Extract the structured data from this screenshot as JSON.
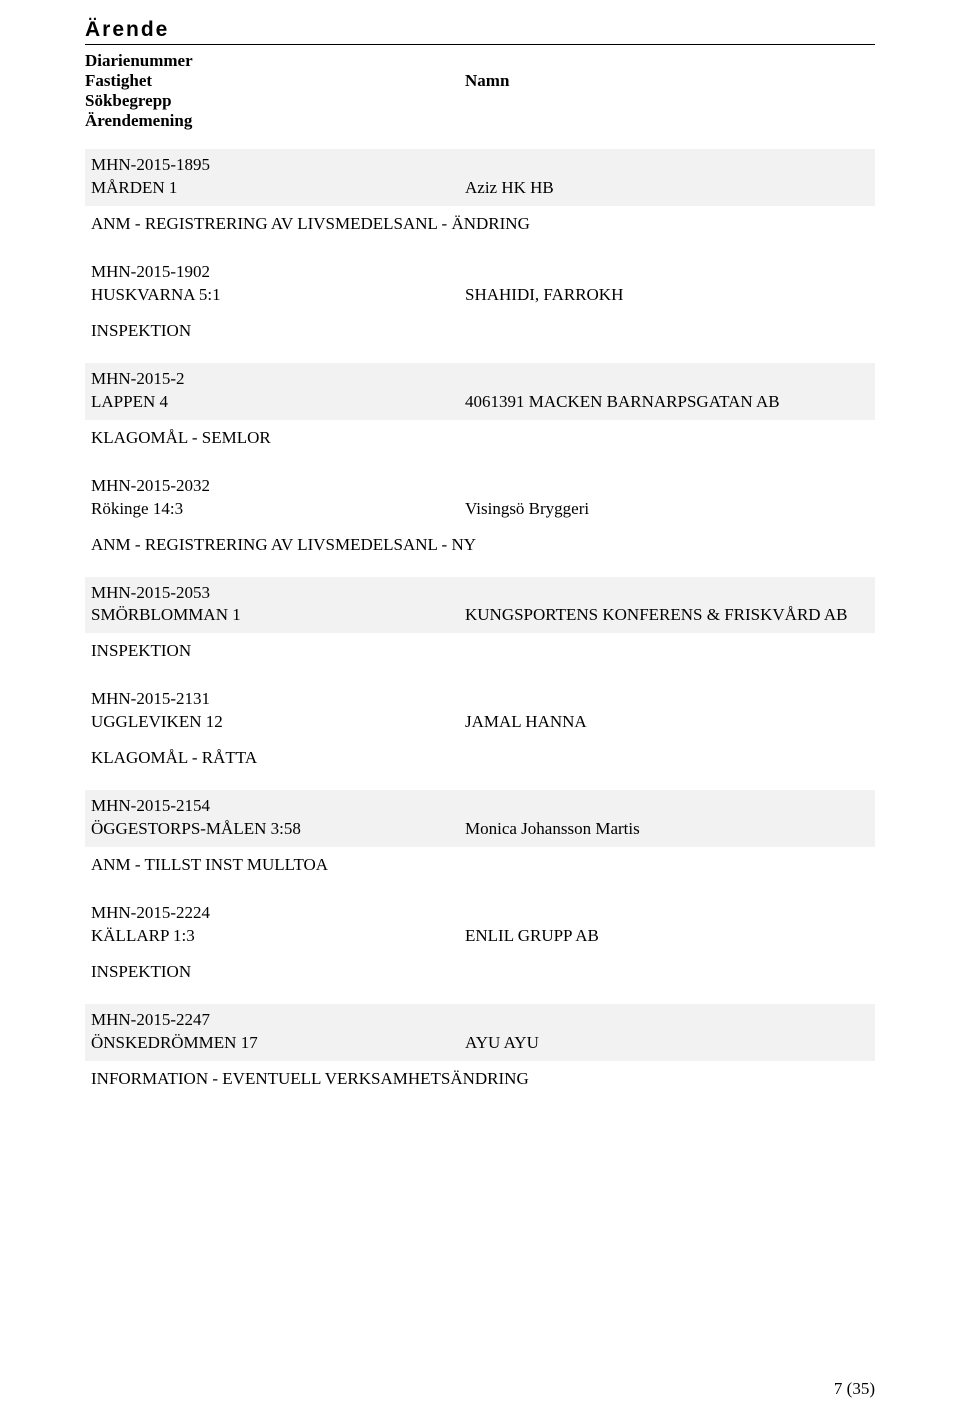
{
  "header": {
    "title": "Ärende",
    "labels": {
      "diarienummer": "Diarienummer",
      "fastighet": "Fastighet",
      "namn": "Namn",
      "sokbegrepp": "Sökbegrepp",
      "arendemening": "Ärendemening"
    }
  },
  "entries": [
    {
      "id": "MHN-2015-1895",
      "fastighet": "MÅRDEN 1",
      "namn": "Aziz HK HB",
      "subject": "ANM - REGISTRERING AV LIVSMEDELSANL - ÄNDRING",
      "shaded": true
    },
    {
      "id": "MHN-2015-1902",
      "fastighet": "HUSKVARNA 5:1",
      "namn": "SHAHIDI, FARROKH",
      "subject": "INSPEKTION",
      "shaded": false
    },
    {
      "id": "MHN-2015-2",
      "fastighet": "LAPPEN 4",
      "namn": "4061391 MACKEN BARNARPSGATAN AB",
      "subject": "KLAGOMÅL - SEMLOR",
      "shaded": true
    },
    {
      "id": "MHN-2015-2032",
      "fastighet": "Rökinge 14:3",
      "namn": "Visingsö Bryggeri",
      "subject": "ANM - REGISTRERING AV LIVSMEDELSANL - NY",
      "shaded": false
    },
    {
      "id": "MHN-2015-2053",
      "fastighet": "SMÖRBLOMMAN 1",
      "namn": "KUNGSPORTENS KONFERENS & FRISKVÅRD AB",
      "subject": "INSPEKTION",
      "shaded": true
    },
    {
      "id": "MHN-2015-2131",
      "fastighet": "UGGLEVIKEN 12",
      "namn": "JAMAL HANNA",
      "subject": "KLAGOMÅL - RÅTTA",
      "shaded": false
    },
    {
      "id": "MHN-2015-2154",
      "fastighet": "ÖGGESTORPS-MÅLEN 3:58",
      "namn": "Monica Johansson Martis",
      "subject": "ANM - TILLST INST MULLTOA",
      "shaded": true
    },
    {
      "id": "MHN-2015-2224",
      "fastighet": "KÄLLARP 1:3",
      "namn": "ENLIL GRUPP AB",
      "subject": "INSPEKTION",
      "shaded": false
    },
    {
      "id": "MHN-2015-2247",
      "fastighet": "ÖNSKEDRÖMMEN 17",
      "namn": "AYU AYU",
      "subject": "INFORMATION - EVENTUELL VERKSAMHETSÄNDRING",
      "shaded": true
    }
  ],
  "footer": {
    "page": "7 (35)"
  },
  "colors": {
    "shaded_bg": "#f2f2f2",
    "text": "#000000",
    "page_bg": "#ffffff"
  }
}
